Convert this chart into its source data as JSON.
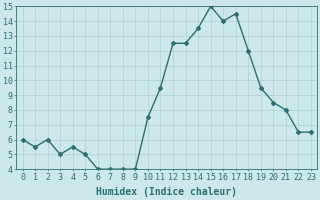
{
  "x": [
    0,
    1,
    2,
    3,
    4,
    5,
    6,
    7,
    8,
    9,
    10,
    11,
    12,
    13,
    14,
    15,
    16,
    17,
    18,
    19,
    20,
    21,
    22,
    23
  ],
  "y": [
    6.0,
    5.5,
    6.0,
    5.0,
    5.5,
    5.0,
    4.0,
    4.0,
    4.0,
    4.0,
    7.5,
    9.5,
    12.5,
    12.5,
    13.5,
    15.0,
    14.0,
    14.5,
    12.0,
    9.5,
    8.5,
    8.0,
    6.5,
    6.5
  ],
  "line_color": "#2d6e6e",
  "marker": "D",
  "marker_size": 2,
  "bg_color": "#cce8e8",
  "grid_color": "#aecfcf",
  "xlabel": "Humidex (Indice chaleur)",
  "ylim": [
    4,
    15
  ],
  "xlim_min": -0.5,
  "xlim_max": 23.5,
  "yticks": [
    4,
    5,
    6,
    7,
    8,
    9,
    10,
    11,
    12,
    13,
    14,
    15
  ],
  "xticks": [
    0,
    1,
    2,
    3,
    4,
    5,
    6,
    7,
    8,
    9,
    10,
    11,
    12,
    13,
    14,
    15,
    16,
    17,
    18,
    19,
    20,
    21,
    22,
    23
  ],
  "xlabel_fontsize": 7,
  "tick_fontsize": 6,
  "tick_color": "#2d6e6e",
  "axis_color": "#2d6e6e",
  "line_width": 1.0
}
